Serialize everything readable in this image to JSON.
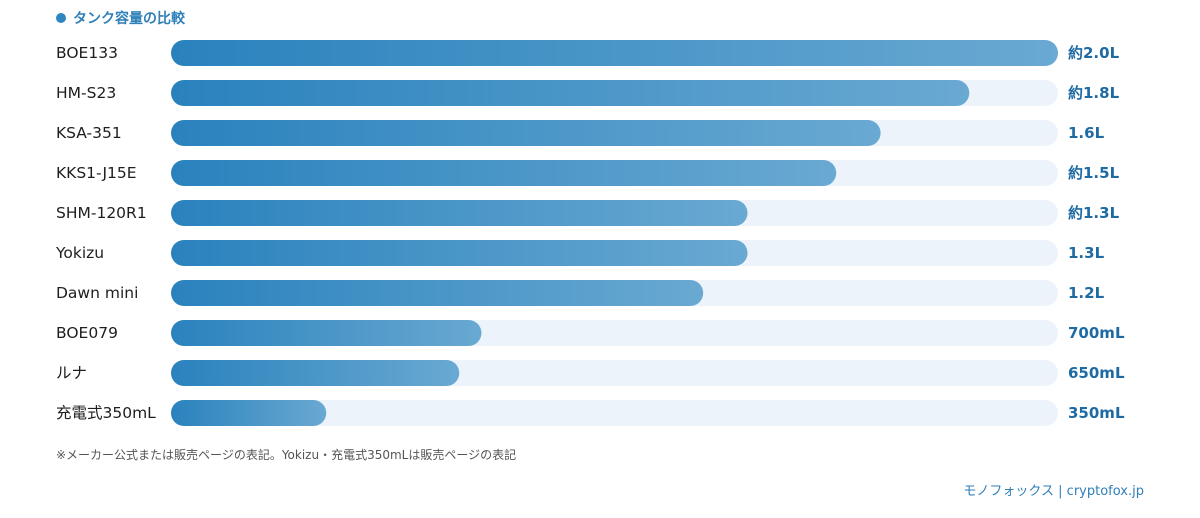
{
  "header": {
    "title": "タンク容量の比較"
  },
  "chart_data": {
    "type": "bar",
    "orientation": "horizontal",
    "unit": "L",
    "xlim": [
      0,
      2.0
    ],
    "categories": [
      "BOE133",
      "HM-S23",
      "KSA-351",
      "KKS1-J15E",
      "SHM-120R1",
      "Yokizu",
      "Dawn mini",
      "BOE079",
      "ルナ",
      "充電式350mL"
    ],
    "values": [
      2.0,
      1.8,
      1.6,
      1.5,
      1.3,
      1.3,
      1.2,
      0.7,
      0.65,
      0.35
    ],
    "value_labels": [
      "約2.0L",
      "約1.8L",
      "1.6L",
      "約1.5L",
      "約1.3L",
      "1.3L",
      "1.2L",
      "700mL",
      "650mL",
      "350mL"
    ],
    "colors": {
      "bar_start": "#2a82bd",
      "bar_end": "#69a9d2",
      "track": "#ecf3fa",
      "value_text": "#1e6aa3"
    },
    "grid": false
  },
  "footnote": "※メーカー公式または販売ページの表記。Yokizu・充電式350mLは販売ページの表記",
  "credit": "モノフォックス | cryptofox.jp"
}
